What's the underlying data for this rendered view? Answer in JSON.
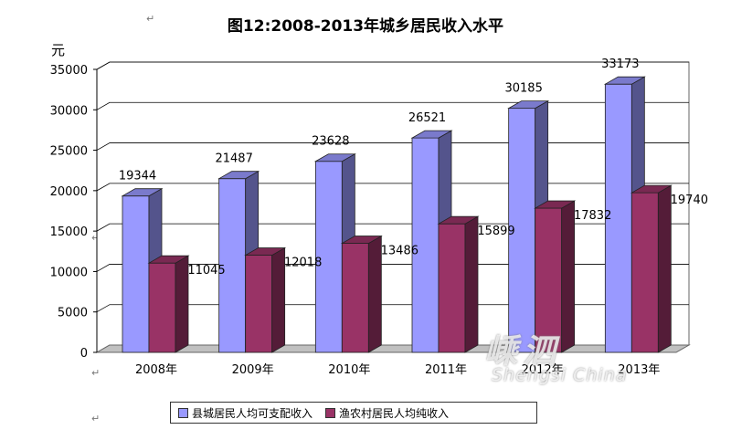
{
  "chart_data": {
    "type": "bar",
    "title": "图12:2008-2013年城乡居民收入水平",
    "ylabel": "元",
    "xlabel": "",
    "categories": [
      "2008年",
      "2009年",
      "2010年",
      "2011年",
      "2012年",
      "2013年"
    ],
    "series": [
      {
        "name": "县城居民人均可支配收入",
        "values": [
          19344,
          21487,
          23628,
          26521,
          30185,
          33173
        ],
        "color": "#9999ff"
      },
      {
        "name": "渔农村居民人均纯收入",
        "values": [
          11045,
          12018,
          13486,
          15899,
          17832,
          19740
        ],
        "color": "#993366"
      }
    ],
    "ylim": [
      0,
      35000
    ],
    "yticks": [
      0,
      5000,
      10000,
      15000,
      20000,
      25000,
      30000,
      35000
    ],
    "grid": true,
    "legend_position": "bottom",
    "style": "3d-clustered-column"
  },
  "watermark": {
    "cn": "嵊泗",
    "en": "Shengsi China"
  },
  "marks": {
    "return_symbol": "↵"
  }
}
